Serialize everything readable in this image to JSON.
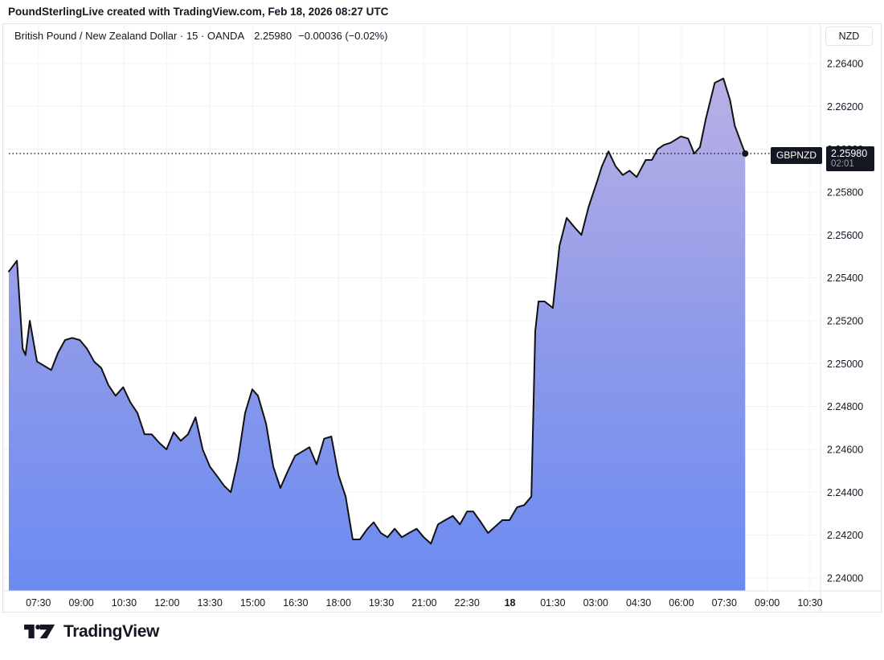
{
  "attribution": "PoundSterlingLive created with TradingView.com, Feb 18, 2026 08:27 UTC",
  "legend": {
    "title": "British Pound / New Zealand Dollar · 15 · OANDA",
    "price": "2.25980",
    "change": "−0.00036 (−0.02%)"
  },
  "price_scale": {
    "currency_button": "NZD"
  },
  "last_price_label": {
    "symbol": "GBPNZD",
    "price": "2.25980",
    "countdown": "02:01"
  },
  "footer": {
    "brand": "TradingView"
  },
  "chart_data": {
    "type": "area",
    "title": "British Pound / New Zealand Dollar",
    "interval": "15",
    "exchange": "OANDA",
    "last_value": 2.2598,
    "change_value": -0.00036,
    "change_percent": "-0.02%",
    "grid": true,
    "y_domain": [
      2.2394,
      2.2658
    ],
    "y_ticks": [
      "2.26400",
      "2.26200",
      "2.26000",
      "2.25800",
      "2.25600",
      "2.25400",
      "2.25200",
      "2.25000",
      "2.24800",
      "2.24600",
      "2.24400",
      "2.24200",
      "2.24000"
    ],
    "x_domain_minutes": [
      0,
      1704
    ],
    "x_ticks": [
      {
        "label": "07:30",
        "m": 62,
        "bold": false
      },
      {
        "label": "09:00",
        "m": 152,
        "bold": false
      },
      {
        "label": "10:30",
        "m": 242,
        "bold": false
      },
      {
        "label": "12:00",
        "m": 332,
        "bold": false
      },
      {
        "label": "13:30",
        "m": 422,
        "bold": false
      },
      {
        "label": "15:00",
        "m": 512,
        "bold": false
      },
      {
        "label": "16:30",
        "m": 602,
        "bold": false
      },
      {
        "label": "18:00",
        "m": 692,
        "bold": false
      },
      {
        "label": "19:30",
        "m": 782,
        "bold": false
      },
      {
        "label": "21:00",
        "m": 872,
        "bold": false
      },
      {
        "label": "22:30",
        "m": 962,
        "bold": false
      },
      {
        "label": "18",
        "m": 1052,
        "bold": true
      },
      {
        "label": "01:30",
        "m": 1142,
        "bold": false
      },
      {
        "label": "03:00",
        "m": 1232,
        "bold": false
      },
      {
        "label": "04:30",
        "m": 1322,
        "bold": false
      },
      {
        "label": "06:00",
        "m": 1412,
        "bold": false
      },
      {
        "label": "07:30",
        "m": 1502,
        "bold": false
      },
      {
        "label": "09:00",
        "m": 1592,
        "bold": false
      },
      {
        "label": "10:30",
        "m": 1682,
        "bold": false
      }
    ],
    "points": [
      [
        0,
        2.2543
      ],
      [
        17,
        2.2548
      ],
      [
        29,
        2.2507
      ],
      [
        35,
        2.2504
      ],
      [
        44,
        2.252
      ],
      [
        59,
        2.2501
      ],
      [
        74,
        2.2499
      ],
      [
        89,
        2.2497
      ],
      [
        103,
        2.2505
      ],
      [
        118,
        2.2511
      ],
      [
        133,
        2.2512
      ],
      [
        149,
        2.2511
      ],
      [
        164,
        2.2507
      ],
      [
        179,
        2.2501
      ],
      [
        194,
        2.2498
      ],
      [
        209,
        2.249
      ],
      [
        224,
        2.2485
      ],
      [
        240,
        2.2489
      ],
      [
        255,
        2.2482
      ],
      [
        270,
        2.2477
      ],
      [
        285,
        2.2467
      ],
      [
        300,
        2.2467
      ],
      [
        316,
        2.2463
      ],
      [
        331,
        2.246
      ],
      [
        346,
        2.2468
      ],
      [
        361,
        2.2464
      ],
      [
        376,
        2.2467
      ],
      [
        392,
        2.2475
      ],
      [
        407,
        2.246
      ],
      [
        422,
        2.2452
      ],
      [
        439,
        2.2447
      ],
      [
        452,
        2.2443
      ],
      [
        466,
        2.244
      ],
      [
        481,
        2.2455
      ],
      [
        496,
        2.2477
      ],
      [
        511,
        2.2488
      ],
      [
        523,
        2.2485
      ],
      [
        540,
        2.2472
      ],
      [
        555,
        2.2452
      ],
      [
        570,
        2.2442
      ],
      [
        586,
        2.245
      ],
      [
        601,
        2.2457
      ],
      [
        616,
        2.2459
      ],
      [
        631,
        2.2461
      ],
      [
        646,
        2.2453
      ],
      [
        662,
        2.2465
      ],
      [
        677,
        2.2466
      ],
      [
        692,
        2.2448
      ],
      [
        707,
        2.2438
      ],
      [
        722,
        2.2418
      ],
      [
        737,
        2.2418
      ],
      [
        753,
        2.2423
      ],
      [
        766,
        2.2426
      ],
      [
        781,
        2.2421
      ],
      [
        795,
        2.2419
      ],
      [
        810,
        2.2423
      ],
      [
        825,
        2.2419
      ],
      [
        840,
        2.2421
      ],
      [
        856,
        2.2423
      ],
      [
        871,
        2.2419
      ],
      [
        886,
        2.2416
      ],
      [
        901,
        2.2425
      ],
      [
        916,
        2.2427
      ],
      [
        932,
        2.2429
      ],
      [
        947,
        2.2425
      ],
      [
        962,
        2.2431
      ],
      [
        975,
        2.2431
      ],
      [
        991,
        2.2426
      ],
      [
        1006,
        2.2421
      ],
      [
        1021,
        2.2424
      ],
      [
        1036,
        2.2427
      ],
      [
        1051,
        2.2427
      ],
      [
        1067,
        2.2433
      ],
      [
        1082,
        2.2434
      ],
      [
        1097,
        2.2438
      ],
      [
        1105,
        2.2515
      ],
      [
        1112,
        2.2529
      ],
      [
        1125,
        2.2529
      ],
      [
        1142,
        2.2526
      ],
      [
        1156,
        2.2555
      ],
      [
        1171,
        2.2568
      ],
      [
        1186,
        2.2564
      ],
      [
        1202,
        2.256
      ],
      [
        1217,
        2.2573
      ],
      [
        1235,
        2.2585
      ],
      [
        1245,
        2.2592
      ],
      [
        1259,
        2.2599
      ],
      [
        1274,
        2.2592
      ],
      [
        1289,
        2.2588
      ],
      [
        1303,
        2.259
      ],
      [
        1318,
        2.2587
      ],
      [
        1337,
        2.2595
      ],
      [
        1350,
        2.2595
      ],
      [
        1362,
        2.26
      ],
      [
        1375,
        2.2602
      ],
      [
        1389,
        2.2603
      ],
      [
        1411,
        2.2606
      ],
      [
        1426,
        2.2605
      ],
      [
        1439,
        2.2598
      ],
      [
        1451,
        2.2601
      ],
      [
        1463,
        2.2614
      ],
      [
        1482,
        2.2631
      ],
      [
        1500,
        2.2633
      ],
      [
        1514,
        2.2623
      ],
      [
        1524,
        2.2611
      ],
      [
        1539,
        2.2602
      ],
      [
        1546,
        2.2598
      ]
    ],
    "colors": {
      "line": "#111111",
      "area_top": "#b9b0e6",
      "area_mid": "#8e9ae9",
      "area_bottom": "#6b8bf2",
      "grid": "#f0f3fa",
      "axis_border": "#e0e3eb",
      "text": "#131722",
      "last_price_dotted": "#000000",
      "label_bg": "#131722",
      "label_fg": "#ffffff"
    }
  }
}
